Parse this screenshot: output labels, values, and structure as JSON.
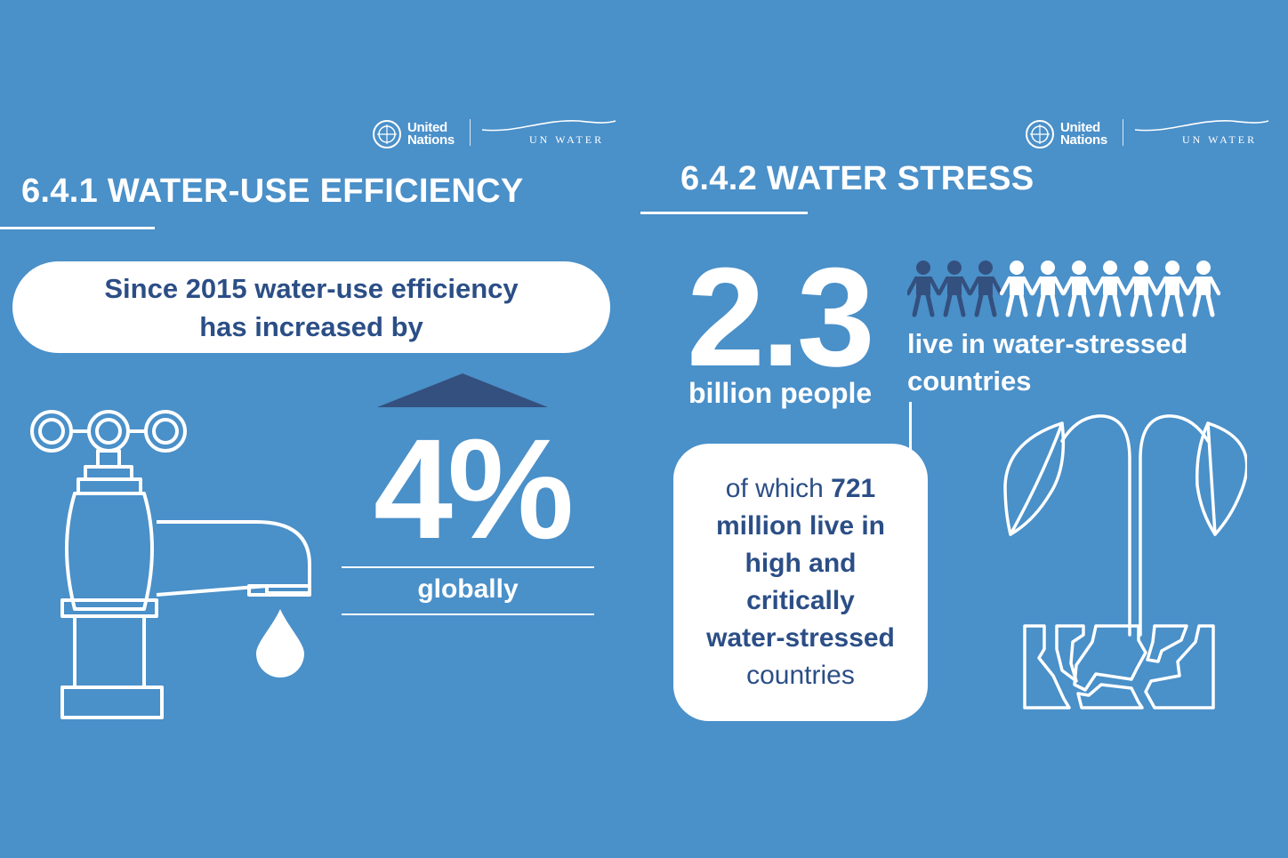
{
  "logos": {
    "united_nations_line1": "United",
    "united_nations_line2": "Nations",
    "un_water": "UN WATER"
  },
  "left": {
    "heading": "6.4.1 WATER-USE EFFICIENCY",
    "pill_line1": "Since 2015 water-use efficiency",
    "pill_line2": "has increased by",
    "stat": "4%",
    "stat_label": "globally",
    "icons": [
      "faucet-icon",
      "water-drop-icon",
      "up-arrow-icon"
    ]
  },
  "right": {
    "heading": "6.4.2 WATER STRESS",
    "stat": "2.3",
    "stat_label": "billion people",
    "people_caption_line1": "live in water-stressed",
    "people_caption_line2": "countries",
    "people_total": 10,
    "people_highlighted": 3,
    "callout_prefix": "of which ",
    "callout_bold1": "721",
    "callout_bold2": "million live in",
    "callout_bold3": "high and",
    "callout_bold4": "critically",
    "callout_bold5": "water-stressed",
    "callout_line6": "countries",
    "icons": [
      "people-chain-icon",
      "wilted-plant-icon",
      "cracked-soil-icon"
    ]
  },
  "colors": {
    "background": "#4a90c9",
    "navy": "#2b4e86",
    "dark_person": "#34507f",
    "white": "#ffffff"
  }
}
